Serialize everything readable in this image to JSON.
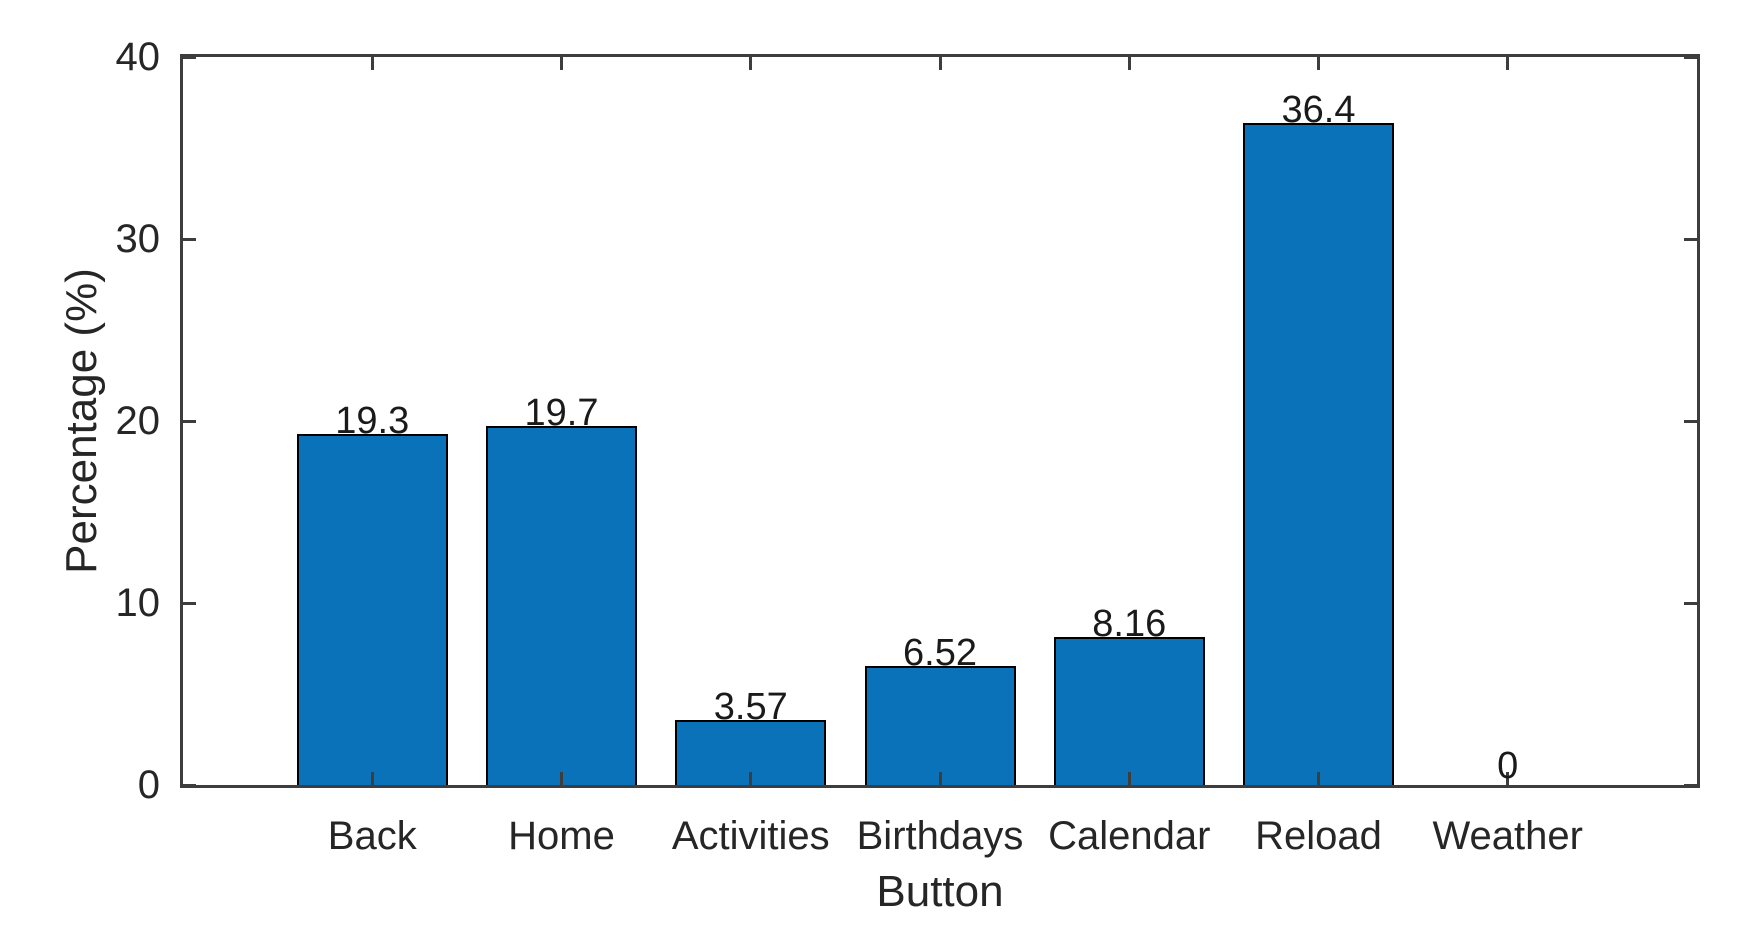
{
  "chart_data": {
    "type": "bar",
    "categories": [
      "Back",
      "Home",
      "Activities",
      "Birthdays",
      "Calendar",
      "Reload",
      "Weather"
    ],
    "values": [
      19.3,
      19.7,
      3.57,
      6.52,
      8.16,
      36.4,
      0
    ],
    "value_labels": [
      "19.3",
      "19.7",
      "3.57",
      "6.52",
      "8.16",
      "36.4",
      "0"
    ],
    "title": "",
    "xlabel": "Button",
    "ylabel": "Percentage (%)",
    "ylim": [
      0,
      40
    ],
    "yticks": [
      0,
      10,
      20,
      30,
      40
    ],
    "ytick_labels": [
      "0",
      "10",
      "20",
      "30",
      "40"
    ],
    "grid": false,
    "legend": null,
    "bar_width_fraction": 0.8,
    "bar_color": "#0a72b9",
    "bar_edge_color": "#000000",
    "axis_color": "#3d3d3d",
    "text_color": "#262626"
  }
}
